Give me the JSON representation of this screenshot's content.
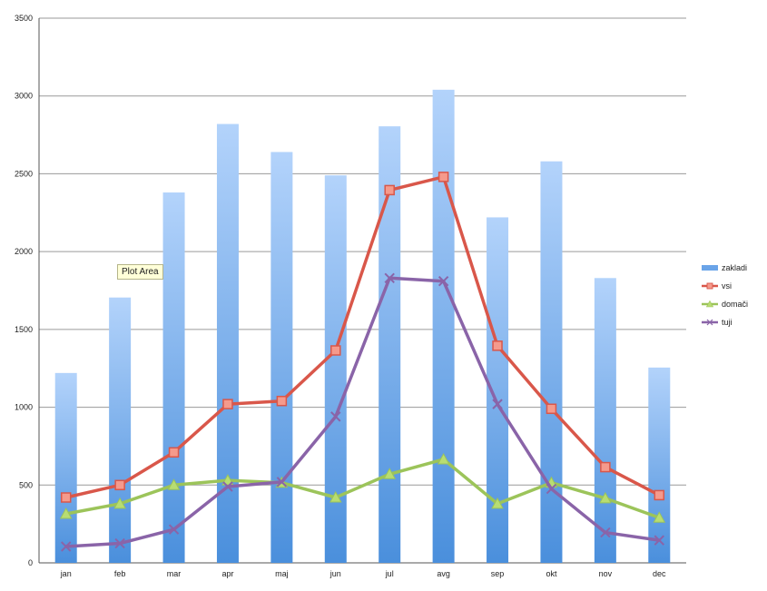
{
  "tooltip": "Plot Area",
  "chart_data": {
    "type": "bar",
    "categories": [
      "jan",
      "feb",
      "mar",
      "apr",
      "maj",
      "jun",
      "jul",
      "avg",
      "sep",
      "okt",
      "nov",
      "dec"
    ],
    "ylim": [
      0,
      3500
    ],
    "yticks": [
      0,
      500,
      1000,
      1500,
      2000,
      2500,
      3000,
      3500
    ],
    "grid": true,
    "legend_position": "right",
    "series": [
      {
        "name": "zakladi",
        "type": "bar",
        "color": "#7fb2ee",
        "values": [
          1220,
          1705,
          2380,
          2820,
          2640,
          2490,
          2805,
          3040,
          2220,
          2580,
          1830,
          1255
        ]
      },
      {
        "name": "vsi",
        "type": "line",
        "color": "#d9574a",
        "marker": "square",
        "values": [
          420,
          500,
          710,
          1020,
          1040,
          1365,
          2395,
          2480,
          1395,
          990,
          615,
          435
        ]
      },
      {
        "name": "domači",
        "type": "line",
        "color": "#9cc45a",
        "marker": "triangle",
        "values": [
          315,
          380,
          500,
          530,
          515,
          420,
          570,
          665,
          380,
          515,
          415,
          290
        ]
      },
      {
        "name": "tuji",
        "type": "line",
        "color": "#8a64a8",
        "marker": "x",
        "values": [
          105,
          125,
          215,
          490,
          520,
          940,
          1830,
          1810,
          1020,
          475,
          195,
          145
        ]
      }
    ]
  }
}
